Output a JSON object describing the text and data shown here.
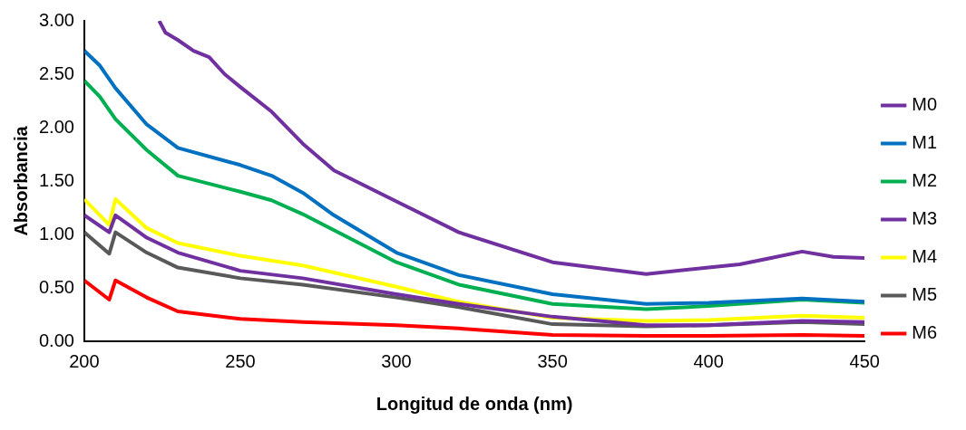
{
  "chart_data": {
    "type": "line",
    "xlabel": "Longitud de onda (nm)",
    "ylabel": "Absorbancia",
    "xlim": [
      200,
      450
    ],
    "xticks": [
      200,
      250,
      300,
      350,
      400,
      450
    ],
    "ylim": [
      0,
      3
    ],
    "yticks": [
      {
        "value": 0,
        "label": "0.00"
      },
      {
        "value": 0.5,
        "label": "0.50"
      },
      {
        "value": 1,
        "label": "1.00"
      },
      {
        "value": 1.5,
        "label": "1.50"
      },
      {
        "value": 2,
        "label": "2.00"
      },
      {
        "value": 2.5,
        "label": "2.50"
      },
      {
        "value": 3,
        "label": "3.00"
      }
    ],
    "grid": false,
    "legend": "right",
    "marker": "none",
    "line_style": "solid",
    "series": [
      {
        "name": "M0",
        "color": "#7030a0",
        "x": [
          224,
          226,
          230,
          235,
          240,
          245,
          250,
          260,
          270,
          280,
          300,
          320,
          350,
          380,
          400,
          410,
          420,
          430,
          440,
          450
        ],
        "values": [
          3.0,
          2.89,
          2.82,
          2.72,
          2.66,
          2.5,
          2.38,
          2.15,
          1.85,
          1.6,
          1.31,
          1.02,
          0.74,
          0.63,
          0.69,
          0.72,
          0.78,
          0.84,
          0.79,
          0.78
        ]
      },
      {
        "name": "M1",
        "color": "#0070c0",
        "x": [
          200,
          205,
          210,
          220,
          230,
          250,
          260,
          270,
          280,
          300,
          320,
          350,
          380,
          400,
          430,
          450
        ],
        "values": [
          2.72,
          2.58,
          2.37,
          2.03,
          1.81,
          1.65,
          1.55,
          1.39,
          1.18,
          0.83,
          0.62,
          0.44,
          0.35,
          0.36,
          0.4,
          0.37
        ]
      },
      {
        "name": "M2",
        "color": "#00b050",
        "x": [
          200,
          205,
          210,
          220,
          230,
          250,
          260,
          270,
          280,
          300,
          320,
          350,
          380,
          400,
          430,
          450
        ],
        "values": [
          2.44,
          2.29,
          2.08,
          1.79,
          1.55,
          1.4,
          1.32,
          1.19,
          1.04,
          0.74,
          0.53,
          0.35,
          0.3,
          0.33,
          0.39,
          0.36
        ]
      },
      {
        "name": "M3",
        "color": "#7030a0",
        "x": [
          200,
          208,
          210,
          220,
          230,
          250,
          270,
          300,
          320,
          350,
          380,
          400,
          430,
          450
        ],
        "values": [
          1.18,
          1.02,
          1.18,
          0.97,
          0.83,
          0.66,
          0.59,
          0.44,
          0.35,
          0.23,
          0.15,
          0.15,
          0.19,
          0.18
        ]
      },
      {
        "name": "M4",
        "color": "#ffff00",
        "x": [
          200,
          208,
          210,
          220,
          230,
          250,
          270,
          300,
          320,
          350,
          380,
          400,
          430,
          450
        ],
        "values": [
          1.33,
          1.09,
          1.33,
          1.06,
          0.92,
          0.8,
          0.71,
          0.51,
          0.37,
          0.22,
          0.19,
          0.2,
          0.24,
          0.22
        ]
      },
      {
        "name": "M5",
        "color": "#595959",
        "x": [
          200,
          208,
          210,
          220,
          230,
          250,
          270,
          300,
          320,
          350,
          380,
          400,
          430,
          450
        ],
        "values": [
          1.02,
          0.82,
          1.02,
          0.83,
          0.69,
          0.59,
          0.53,
          0.41,
          0.32,
          0.16,
          0.14,
          0.15,
          0.18,
          0.16
        ]
      },
      {
        "name": "M6",
        "color": "#ff0000",
        "x": [
          200,
          208,
          210,
          220,
          230,
          250,
          270,
          300,
          320,
          350,
          380,
          400,
          430,
          450
        ],
        "values": [
          0.57,
          0.39,
          0.57,
          0.41,
          0.28,
          0.21,
          0.18,
          0.15,
          0.12,
          0.06,
          0.05,
          0.05,
          0.06,
          0.05
        ]
      }
    ]
  }
}
